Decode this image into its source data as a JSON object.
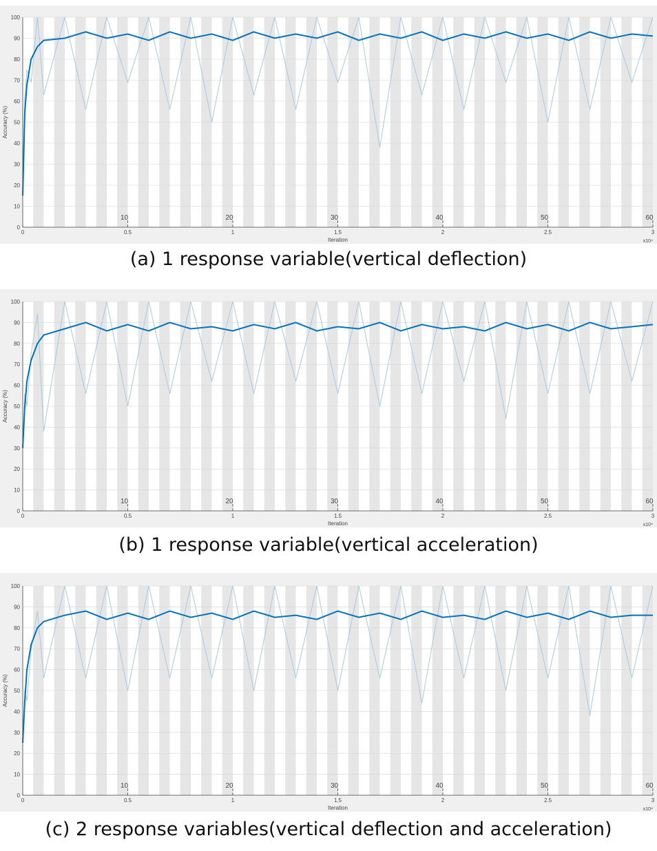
{
  "chart_data": [
    {
      "type": "line",
      "title": "(a) 1 response variable(vertical deflection)",
      "ylabel": "Accuracy (%)",
      "xlabel": "Iteration",
      "x_multiplier": "x10⁴",
      "xlim": [
        0,
        3
      ],
      "xticks": [
        0,
        0.5,
        1,
        1.5,
        2,
        2.5,
        3
      ],
      "ylim": [
        0,
        100
      ],
      "yticks": [
        0,
        10,
        20,
        30,
        40,
        50,
        60,
        70,
        80,
        90,
        100
      ],
      "grid": true,
      "epoch_labels": [
        10,
        20,
        30,
        40,
        50,
        60
      ],
      "epoch_label_x": [
        0.5,
        1,
        1.5,
        2,
        2.5,
        3
      ],
      "series": [
        {
          "color": "#a9c8e0",
          "x": [
            0,
            0.01,
            0.02,
            0.04,
            0.07,
            0.1,
            0.2,
            0.3,
            0.4,
            0.5,
            0.6,
            0.7,
            0.8,
            0.9,
            1,
            1.1,
            1.2,
            1.3,
            1.4,
            1.5,
            1.6,
            1.7,
            1.8,
            1.9,
            2,
            2.1,
            2.2,
            2.3,
            2.4,
            2.5,
            2.6,
            2.7,
            2.8,
            2.9,
            3
          ],
          "values": [
            20,
            62,
            75,
            69,
            100,
            63,
            100,
            56,
            100,
            69,
            100,
            56,
            100,
            50,
            100,
            63,
            100,
            56,
            100,
            69,
            100,
            38,
            100,
            63,
            100,
            56,
            100,
            69,
            100,
            50,
            100,
            56,
            100,
            69,
            100
          ]
        },
        {
          "color": "#0072bd",
          "x": [
            0,
            0.01,
            0.02,
            0.04,
            0.07,
            0.1,
            0.2,
            0.3,
            0.4,
            0.5,
            0.6,
            0.7,
            0.8,
            0.9,
            1,
            1.1,
            1.2,
            1.3,
            1.4,
            1.5,
            1.6,
            1.7,
            1.8,
            1.9,
            2,
            2.1,
            2.2,
            2.3,
            2.4,
            2.5,
            2.6,
            2.7,
            2.8,
            2.9,
            3
          ],
          "values": [
            15,
            55,
            68,
            80,
            86,
            89,
            90,
            93,
            90,
            92,
            89,
            93,
            90,
            92,
            89,
            93,
            90,
            92,
            90,
            93,
            89,
            92,
            90,
            93,
            89,
            92,
            90,
            93,
            90,
            92,
            89,
            93,
            90,
            92,
            91
          ]
        }
      ]
    },
    {
      "type": "line",
      "title": "(b) 1 response variable(vertical acceleration)",
      "ylabel": "Accuracy (%)",
      "xlabel": "Iteration",
      "x_multiplier": "x10⁴",
      "xlim": [
        0,
        3
      ],
      "xticks": [
        0,
        0.5,
        1,
        1.5,
        2,
        2.5,
        3
      ],
      "ylim": [
        0,
        100
      ],
      "yticks": [
        0,
        10,
        20,
        30,
        40,
        50,
        60,
        70,
        80,
        90,
        100
      ],
      "grid": true,
      "epoch_labels": [
        10,
        20,
        30,
        40,
        50,
        60
      ],
      "epoch_label_x": [
        0.5,
        1,
        1.5,
        2,
        2.5,
        3
      ],
      "series": [
        {
          "color": "#a9c8e0",
          "x": [
            0,
            0.01,
            0.02,
            0.04,
            0.07,
            0.1,
            0.2,
            0.3,
            0.4,
            0.5,
            0.6,
            0.7,
            0.8,
            0.9,
            1,
            1.1,
            1.2,
            1.3,
            1.4,
            1.5,
            1.6,
            1.7,
            1.8,
            1.9,
            2,
            2.1,
            2.2,
            2.3,
            2.4,
            2.5,
            2.6,
            2.7,
            2.8,
            2.9,
            3
          ],
          "values": [
            30,
            56,
            50,
            75,
            94,
            38,
            100,
            56,
            100,
            50,
            100,
            56,
            100,
            62,
            100,
            56,
            100,
            62,
            100,
            56,
            100,
            50,
            100,
            56,
            100,
            62,
            100,
            44,
            100,
            56,
            100,
            56,
            100,
            62,
            100
          ]
        },
        {
          "color": "#0072bd",
          "x": [
            0,
            0.01,
            0.02,
            0.04,
            0.07,
            0.1,
            0.2,
            0.3,
            0.4,
            0.5,
            0.6,
            0.7,
            0.8,
            0.9,
            1,
            1.1,
            1.2,
            1.3,
            1.4,
            1.5,
            1.6,
            1.7,
            1.8,
            1.9,
            2,
            2.1,
            2.2,
            2.3,
            2.4,
            2.5,
            2.6,
            2.7,
            2.8,
            2.9,
            3
          ],
          "values": [
            30,
            50,
            62,
            72,
            80,
            84,
            87,
            90,
            86,
            89,
            86,
            90,
            87,
            88,
            86,
            89,
            87,
            90,
            86,
            88,
            87,
            90,
            86,
            89,
            87,
            88,
            86,
            90,
            87,
            89,
            86,
            90,
            87,
            88,
            89
          ]
        }
      ]
    },
    {
      "type": "line",
      "title": "(c) 2 response variables(vertical deflection and acceleration)",
      "ylabel": "Accuracy (%)",
      "xlabel": "Iteration",
      "x_multiplier": "x10⁴",
      "xlim": [
        0,
        3
      ],
      "xticks": [
        0,
        0.5,
        1,
        1.5,
        2,
        2.5,
        3
      ],
      "ylim": [
        0,
        100
      ],
      "yticks": [
        0,
        10,
        20,
        30,
        40,
        50,
        60,
        70,
        80,
        90,
        100
      ],
      "grid": true,
      "epoch_labels": [
        10,
        20,
        30,
        40,
        50,
        60
      ],
      "epoch_label_x": [
        0.5,
        1,
        1.5,
        2,
        2.5,
        3
      ],
      "series": [
        {
          "color": "#a9c8e0",
          "x": [
            0,
            0.01,
            0.02,
            0.04,
            0.07,
            0.1,
            0.2,
            0.3,
            0.4,
            0.5,
            0.6,
            0.7,
            0.8,
            0.9,
            1,
            1.1,
            1.2,
            1.3,
            1.4,
            1.5,
            1.6,
            1.7,
            1.8,
            1.9,
            2,
            2.1,
            2.2,
            2.3,
            2.4,
            2.5,
            2.6,
            2.7,
            2.8,
            2.9,
            3
          ],
          "values": [
            25,
            50,
            45,
            69,
            88,
            56,
            100,
            56,
            100,
            50,
            100,
            56,
            100,
            56,
            100,
            50,
            100,
            56,
            100,
            50,
            100,
            56,
            100,
            44,
            100,
            56,
            100,
            50,
            100,
            56,
            100,
            38,
            100,
            56,
            100
          ]
        },
        {
          "color": "#0072bd",
          "x": [
            0,
            0.01,
            0.02,
            0.04,
            0.07,
            0.1,
            0.2,
            0.3,
            0.4,
            0.5,
            0.6,
            0.7,
            0.8,
            0.9,
            1,
            1.1,
            1.2,
            1.3,
            1.4,
            1.5,
            1.6,
            1.7,
            1.8,
            1.9,
            2,
            2.1,
            2.2,
            2.3,
            2.4,
            2.5,
            2.6,
            2.7,
            2.8,
            2.9,
            3
          ],
          "values": [
            25,
            45,
            60,
            72,
            80,
            83,
            86,
            88,
            84,
            87,
            84,
            88,
            85,
            87,
            84,
            88,
            85,
            86,
            84,
            88,
            85,
            87,
            84,
            88,
            85,
            86,
            84,
            88,
            85,
            87,
            84,
            88,
            85,
            86,
            86
          ]
        }
      ]
    }
  ]
}
